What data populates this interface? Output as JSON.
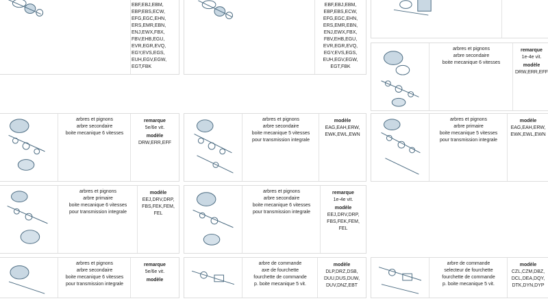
{
  "labels": {
    "remarque": "remarque",
    "modele": "modèle"
  },
  "cards": [
    {
      "id": "c1",
      "desc": "",
      "remarque": "",
      "modele": "DZL,EBA,EBD,\nEBF,EBJ,EBM,\nEBP,EBS,ECW,\nEFG,EGC,EHN,\nERS,EMR,EBN,\nENJ,EWX,FBX,\nFBV,EHB,EGU,\nEVR,EGR,EVQ,\nEGY,EVS,EGS,\nEUH,EGV,EGW,\nEGT,FBK"
    },
    {
      "id": "c2",
      "desc": "",
      "remarque": "",
      "modele": "DZL,EBA,EBD,\nEBF,EBJ,EBM,\nEBP,EBS,ECW,\nEFG,EGC,EHN,\nERS,EMR,EBN,\nENJ,EWX,FBX,\nFBV,EHB,EGU,\nEVR,EGR,EVQ,\nEGY,EVS,EGS,\nEUH,EGV,EGW,\nEGT,FBK"
    },
    {
      "id": "c3",
      "desc": "",
      "remarque": "",
      "modele": ""
    },
    {
      "id": "c4",
      "desc": "arbres et pignons\narbre secondaire\nboite mecanique 6 vitesses",
      "remarque": "1e-4e vit.",
      "modele": "DRW,ERR,EFF"
    },
    {
      "id": "c5",
      "desc": "arbres et pignons\narbre secondaire\nboite mecanique 6 vitesses",
      "remarque": "5e/6e vit.",
      "modele": "DRW,ERR,EFF"
    },
    {
      "id": "c6",
      "desc": "arbres et pignons\narbre secondaire\nboite mecanique 5 vitesses\npour transmission integrale",
      "remarque": "",
      "modele": "EAG,EAH,ERW,\nEWK,EWL,EWN"
    },
    {
      "id": "c7",
      "desc": "arbres et pignons\narbre primaire\nboite mecanique 5 vitesses\npour transmission integrale",
      "remarque": "",
      "modele": "EAG,EAH,ERW,\nEWK,EWL,EWN"
    },
    {
      "id": "c8",
      "desc": "arbres et pignons\narbre primaire\nboite mecanique 6 vitesses\npour transmission integrale",
      "remarque": "",
      "modele": "EEJ,DRV,DRP,\nFBS,FEK,FEM,\nFEL"
    },
    {
      "id": "c9",
      "desc": "arbres et pignons\narbre secondaire\nboite mecanique 6 vitesses\npour transmission integrale",
      "remarque": "1e-4e vit.",
      "modele": "EEJ,DRV,DRP,\nFBS,FEK,FEM,\nFEL"
    },
    {
      "id": "c10",
      "desc": "arbres et pignons\narbre secondaire\nboite mecanique 6 vitesses\npour transmission integrale",
      "remarque": "5e/6e vit.",
      "modele": ""
    },
    {
      "id": "c11",
      "desc": "arbre de commande\naxe de fourchette\nfourchette de commande\np. boite mecanique 5 vit.",
      "remarque": "",
      "modele": "DLP,DRZ,DSB,\nDUU,DUS,DUW,\nDUV,DNZ,EBT"
    },
    {
      "id": "c12",
      "desc": "arbre de commande\nselecteur de fourchette\nfourchette de commande\np. boite mecanique 5 vit.",
      "remarque": "",
      "modele": "CZL,CZM,DBZ,\nDCL,DEA,DQY,\nDTK,DYN,DYP"
    }
  ]
}
